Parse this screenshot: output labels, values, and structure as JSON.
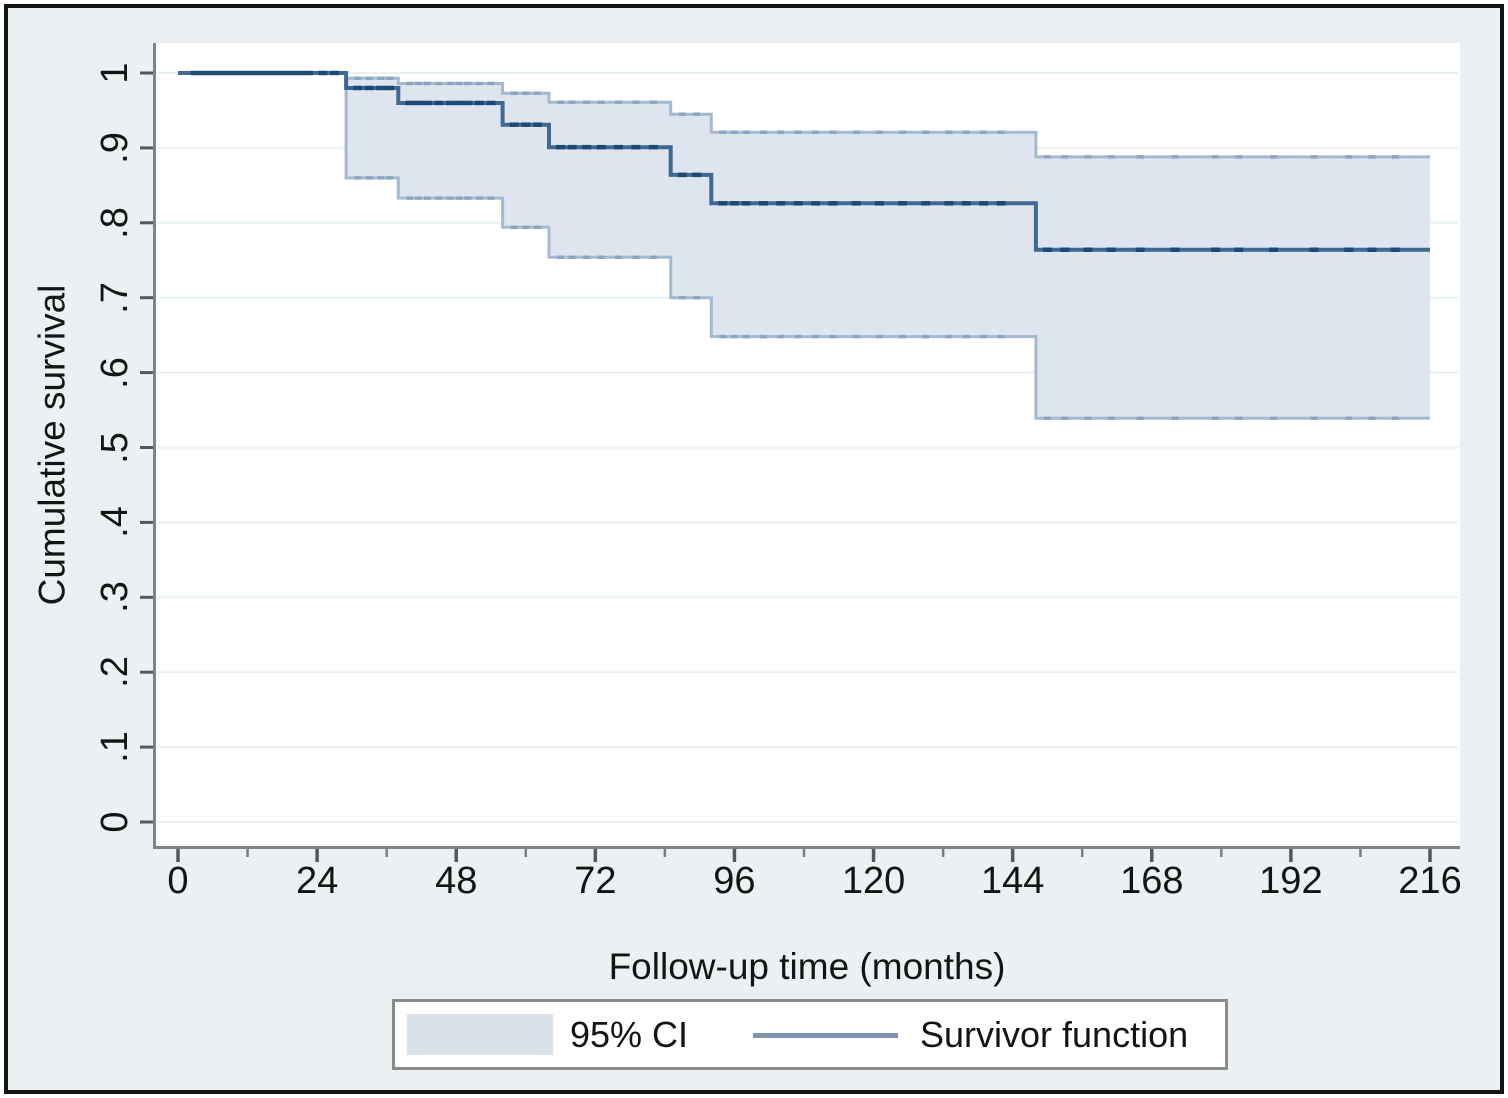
{
  "figure": {
    "kind": "stata-style survival figure",
    "title": ""
  },
  "colors": {
    "background": "#ebf1f3",
    "plot_background": "#ffffff",
    "grid": "#e7f1f3",
    "axis": "#7f8486",
    "tick": "#53585c",
    "minor_tick": "#7a7f82",
    "text": "#141414",
    "ci_fill": "#dfe5ee",
    "ci_edge": "#a4bad1",
    "ci_censor": "#8ca6c1",
    "line": "#3f6892",
    "line_censor": "#1c4a76",
    "legend_line": "#7e95ab",
    "legend_swatch": "#dae1eb",
    "legend_border": "#8b8b8b",
    "figure_border": "#151515"
  },
  "chart_data": {
    "type": "line",
    "subtype": "kaplan_meier_step_with_ci_band",
    "title": "",
    "xlabel": "Follow-up time (months)",
    "ylabel": "Cumulative survival",
    "xlim": [
      0,
      216
    ],
    "ylim": [
      0,
      1
    ],
    "grid": "horizontal-y-only",
    "legend_position": "bottom",
    "x_ticks": [
      0,
      24,
      48,
      72,
      96,
      120,
      144,
      168,
      192,
      216
    ],
    "x_tick_labels": [
      "0",
      "24",
      "48",
      "72",
      "96",
      "120",
      "144",
      "168",
      "192",
      "216"
    ],
    "x_minor_ticks": [
      12,
      36,
      60,
      84,
      108,
      132,
      156,
      180,
      204
    ],
    "y_ticks": [
      0,
      0.1,
      0.2,
      0.3,
      0.4,
      0.5,
      0.6,
      0.7,
      0.8,
      0.9,
      1
    ],
    "y_tick_labels": [
      "0",
      ".1",
      ".2",
      ".3",
      ".4",
      ".5",
      ".6",
      ".7",
      ".8",
      ".9",
      "1"
    ],
    "series": [
      {
        "name": "Survivor function",
        "role": "estimate",
        "type": "step",
        "x": [
          0,
          29,
          38,
          56,
          64,
          85,
          92,
          148,
          216
        ],
        "y": [
          1,
          0.98,
          0.96,
          0.931,
          0.901,
          0.864,
          0.826,
          0.764,
          0.764
        ]
      },
      {
        "name": "95% CI upper",
        "role": "ci_upper",
        "type": "step",
        "x": [
          29,
          29,
          38,
          56,
          64,
          85,
          92,
          148,
          216
        ],
        "y": [
          1,
          0.993,
          0.986,
          0.973,
          0.961,
          0.945,
          0.921,
          0.888,
          0.888
        ]
      },
      {
        "name": "95% CI lower",
        "role": "ci_lower",
        "type": "step",
        "x": [
          29,
          29,
          38,
          56,
          64,
          85,
          92,
          148,
          216
        ],
        "y": [
          1,
          0.86,
          0.833,
          0.794,
          0.754,
          0.7,
          0.648,
          0.539,
          0.539
        ]
      }
    ],
    "censor_mark_months": [
      3,
      4.5,
      6,
      7.5,
      9,
      10.5,
      12,
      13.5,
      15,
      16.5,
      18,
      19.5,
      21,
      22.5,
      25,
      27,
      31,
      33,
      35,
      36.5,
      40,
      41.5,
      43,
      45,
      47,
      48.5,
      50,
      52,
      54,
      58,
      60,
      62,
      66,
      68,
      70.5,
      73,
      76,
      79,
      82,
      87,
      89.5,
      94,
      96,
      98,
      101,
      104,
      107,
      110,
      113,
      117,
      121,
      125,
      129,
      133,
      136,
      139,
      142,
      150,
      153,
      157,
      161,
      166,
      172,
      179,
      183,
      189,
      196,
      202,
      206,
      210
    ]
  },
  "legend": {
    "ci_label": "95% CI",
    "line_label": "Survivor function"
  }
}
